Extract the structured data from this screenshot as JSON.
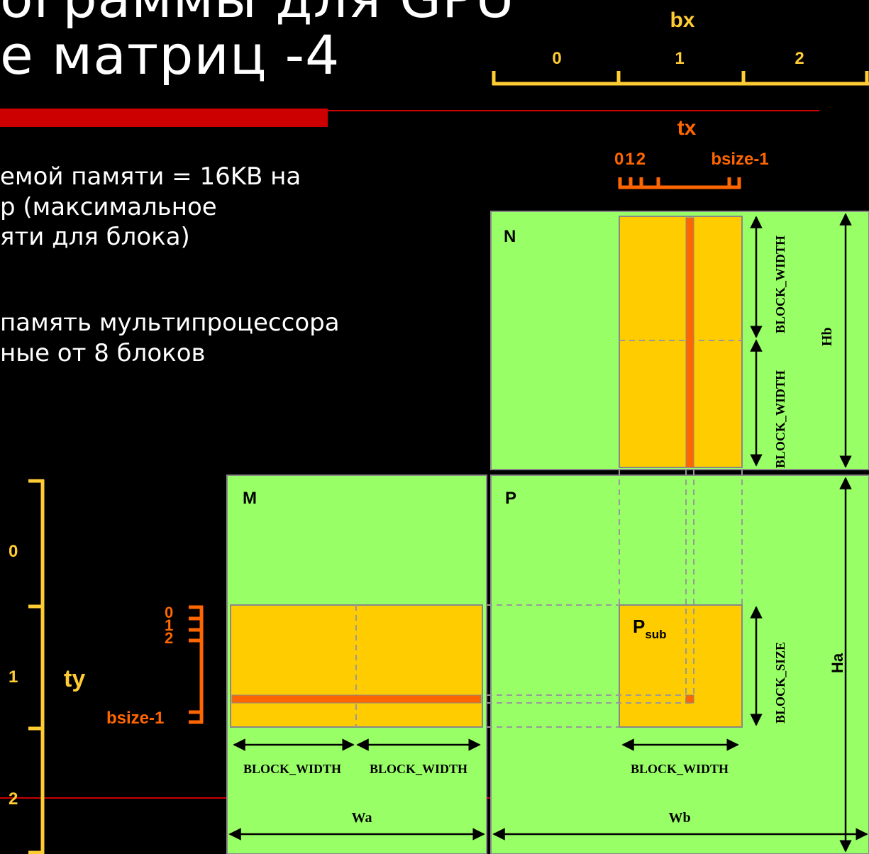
{
  "slide": {
    "title_line1": "ограммы для GPU",
    "title_line2": "е матриц -4",
    "bullet1_lines": [
      "емой памяти = 16KB на",
      "р (максимальное",
      "яти для блока)"
    ],
    "bullet2_lines": [
      "память мультипроцессора",
      "ные от 8 блоков"
    ]
  },
  "diagram": {
    "bx_label": "bx",
    "bx_ticks": [
      "0",
      "1",
      "2"
    ],
    "tx_label": "tx",
    "tx_left": "012",
    "tx_right": "bsize-1",
    "ty_label": "ty",
    "ty_ticks": [
      "0",
      "1",
      "2"
    ],
    "ty_inner": [
      "0",
      "1",
      "2"
    ],
    "ty_inner_last": "bsize-1",
    "matrix_n": "N",
    "matrix_m": "M",
    "matrix_p": "P",
    "psub_main": "P",
    "psub_sub": "sub",
    "block_width": "BLOCK_WIDTH",
    "block_size": "BLOCK_SIZE",
    "wa": "Wa",
    "wb": "Wb",
    "ha": "Ha",
    "hb": "Hb",
    "colors": {
      "green": "#99FF66",
      "yellow": "#FFCC00",
      "orange": "#FF6600",
      "tick": "#FFCC33",
      "red": "#CC0000"
    }
  }
}
